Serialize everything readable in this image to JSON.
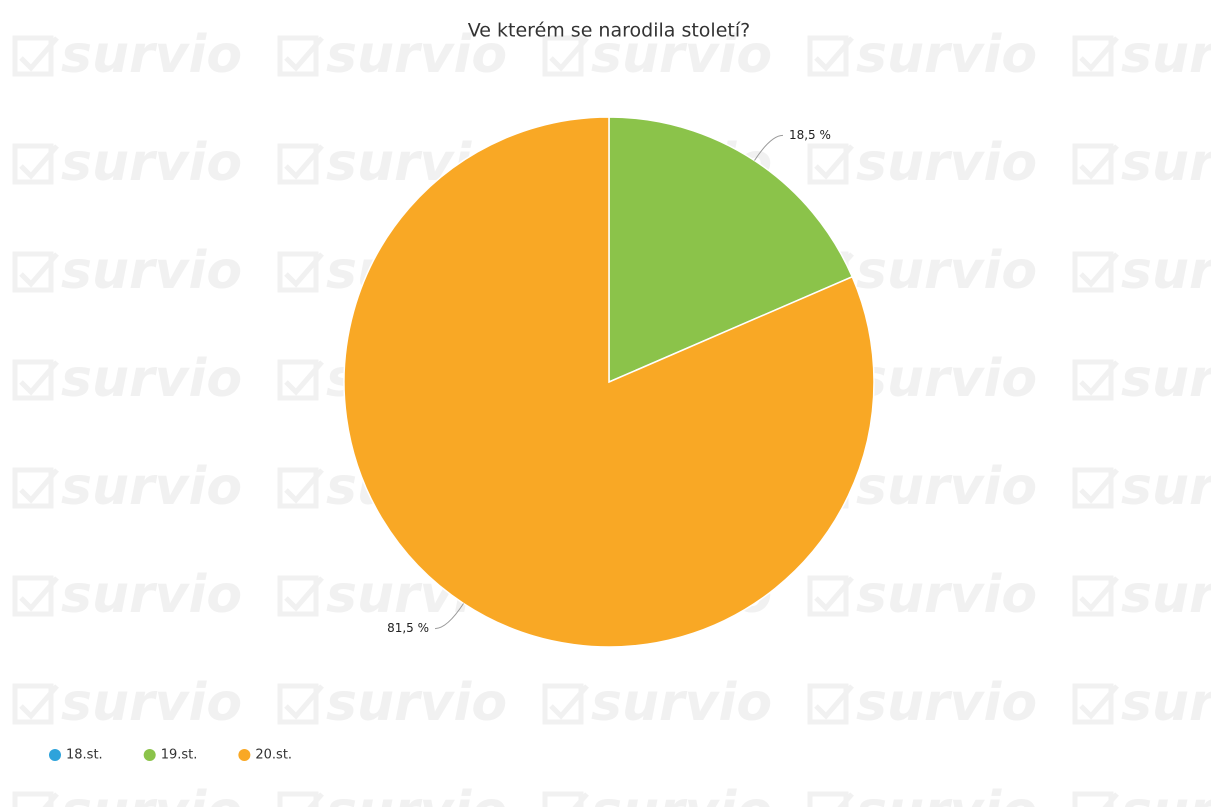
{
  "chart_data": {
    "type": "pie",
    "title": "Ve kterém se narodila století?",
    "watermark": "survio",
    "categories": [
      "18.st.",
      "19.st.",
      "20.st."
    ],
    "values": [
      0,
      18.5,
      81.5
    ],
    "value_labels": [
      null,
      "18,5 %",
      "81,5 %"
    ],
    "colors": [
      "#2ea3db",
      "#8bc34a",
      "#f9a825"
    ],
    "legend": "bottom-left"
  }
}
